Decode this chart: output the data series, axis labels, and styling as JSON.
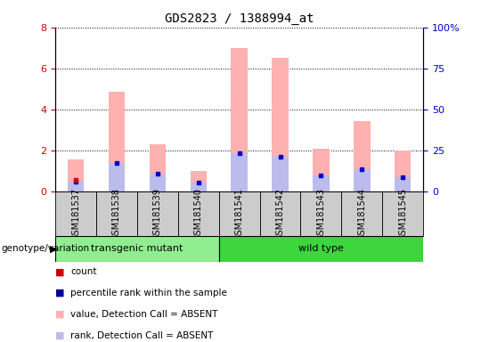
{
  "title": "GDS2823 / 1388994_at",
  "samples": [
    "GSM181537",
    "GSM181538",
    "GSM181539",
    "GSM181540",
    "GSM181541",
    "GSM181542",
    "GSM181543",
    "GSM181544",
    "GSM181545"
  ],
  "pink_bar_values": [
    1.55,
    4.85,
    2.3,
    1.0,
    7.0,
    6.5,
    2.1,
    3.45,
    2.0
  ],
  "blue_bar_values": [
    0.5,
    1.4,
    0.85,
    0.45,
    1.85,
    1.7,
    0.8,
    1.1,
    0.7
  ],
  "red_marker_values": [
    0.55,
    0.0,
    0.0,
    0.0,
    0.0,
    0.0,
    0.0,
    0.0,
    0.0
  ],
  "blue_marker_values": [
    0.5,
    1.4,
    0.85,
    0.45,
    1.85,
    1.7,
    0.8,
    1.1,
    0.7
  ],
  "ylim_left": [
    0,
    8
  ],
  "ylim_right": [
    0,
    100
  ],
  "yticks_left": [
    0,
    2,
    4,
    6,
    8
  ],
  "ytick_labels_right": [
    "0",
    "25",
    "50",
    "75",
    "100%"
  ],
  "groups": [
    {
      "label": "transgenic mutant",
      "start": 0,
      "end": 4,
      "color": "#90EE90"
    },
    {
      "label": "wild type",
      "start": 4,
      "end": 9,
      "color": "#3DD63D"
    }
  ],
  "group_row_label": "genotype/variation",
  "legend_items": [
    {
      "color": "#CC0000",
      "label": "count",
      "marker": "s"
    },
    {
      "color": "#000099",
      "label": "percentile rank within the sample",
      "marker": "s"
    },
    {
      "color": "#FFB0B0",
      "label": "value, Detection Call = ABSENT",
      "marker": "s"
    },
    {
      "color": "#BBBBEE",
      "label": "rank, Detection Call = ABSENT",
      "marker": "s"
    }
  ],
  "bar_width": 0.4,
  "pink_color": "#FFB0B0",
  "blue_bar_color": "#BBBBEE",
  "red_marker_color": "#CC0000",
  "blue_marker_color": "#0000CC",
  "bg_color": "#FFFFFF",
  "tick_color_left": "#CC0000",
  "tick_color_right": "#0000CC",
  "sample_cell_color": "#CCCCCC",
  "grid_color": "#000000"
}
